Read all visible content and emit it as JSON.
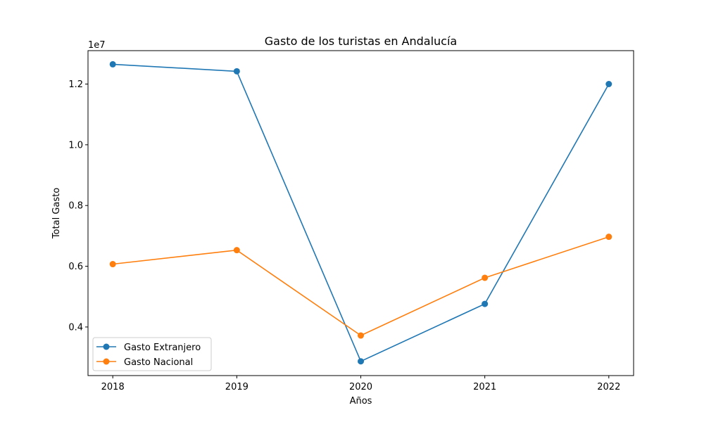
{
  "chart_data": {
    "type": "line",
    "title": "Gasto de los turistas en Andalucía",
    "xlabel": "Años",
    "ylabel": "Total Gasto",
    "y_offset_label": "1e7",
    "x": [
      "2018",
      "2019",
      "2020",
      "2021",
      "2022"
    ],
    "ylim": [
      2400000,
      13100000
    ],
    "yticks": [
      4000000,
      6000000,
      8000000,
      10000000,
      12000000
    ],
    "ytick_labels": [
      "0.4",
      "0.6",
      "0.8",
      "1.0",
      "1.2"
    ],
    "grid": false,
    "legend_position": "lower-left",
    "series": [
      {
        "name": "Gasto Extranjero",
        "color": "#1f77b4",
        "values": [
          12650000,
          12420000,
          2870000,
          4760000,
          12000000
        ]
      },
      {
        "name": "Gasto Nacional",
        "color": "#ff7f0e",
        "values": [
          6070000,
          6530000,
          3720000,
          5620000,
          6970000
        ]
      }
    ]
  }
}
